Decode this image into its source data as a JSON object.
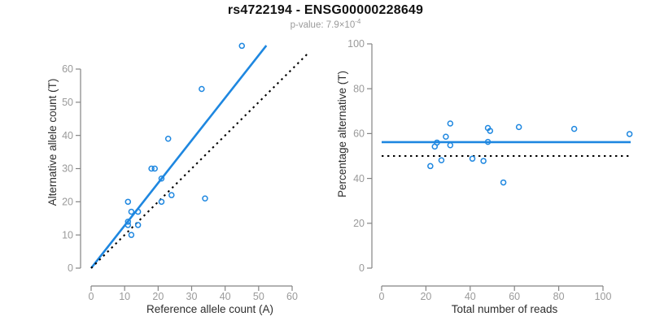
{
  "header": {
    "title": "rs4722194 - ENSG00000228649",
    "subtitle_prefix": "p-value: 7.9×10",
    "subtitle_exponent": "-4"
  },
  "colors": {
    "accent_blue": "#1e87e0",
    "line_black": "#000000",
    "axis_gray": "#848484",
    "tick_label_gray": "#9a9a9a",
    "axis_title_dark": "#2e2e2e"
  },
  "chart_data": [
    {
      "type": "scatter",
      "xlabel": "Reference allele count (A)",
      "ylabel": "Alternative allele count (T)",
      "xlim": [
        0,
        60
      ],
      "ylim": [
        0,
        60
      ],
      "x_ticks": [
        0,
        10,
        20,
        30,
        40,
        50,
        60
      ],
      "y_ticks": [
        0,
        10,
        20,
        30,
        40,
        50,
        60
      ],
      "grid": false,
      "legend": "none",
      "points": [
        [
          11,
          20
        ],
        [
          12,
          17
        ],
        [
          14,
          17
        ],
        [
          11,
          14
        ],
        [
          11,
          13
        ],
        [
          14,
          13
        ],
        [
          12,
          10
        ],
        [
          18,
          30
        ],
        [
          19,
          30
        ],
        [
          21,
          27
        ],
        [
          21,
          20
        ],
        [
          24,
          22
        ],
        [
          23,
          39
        ],
        [
          34,
          21
        ],
        [
          33,
          54
        ],
        [
          45,
          67
        ]
      ],
      "lines": [
        {
          "name": "fit-line",
          "style": "solid",
          "color_key": "accent_blue",
          "x1": 0,
          "y1": 0,
          "x2": 52.3,
          "y2": 67.1
        },
        {
          "name": "identity-line",
          "style": "dotted",
          "color_key": "line_black",
          "x1": 0,
          "y1": 0,
          "x2": 65,
          "y2": 65
        }
      ]
    },
    {
      "type": "scatter",
      "xlabel": "Total number of reads",
      "ylabel": "Percentage alternative (T)",
      "xlim": [
        0,
        100
      ],
      "ylim": [
        0,
        100
      ],
      "x_ticks": [
        0,
        20,
        40,
        60,
        80,
        100
      ],
      "y_ticks": [
        0,
        20,
        40,
        60,
        80,
        100
      ],
      "grid": false,
      "legend": "none",
      "points": [
        [
          31,
          64.5
        ],
        [
          29,
          58.6
        ],
        [
          31,
          54.8
        ],
        [
          25,
          56.0
        ],
        [
          24,
          54.2
        ],
        [
          27,
          48.1
        ],
        [
          22,
          45.5
        ],
        [
          48,
          62.5
        ],
        [
          49,
          61.2
        ],
        [
          48,
          56.3
        ],
        [
          41,
          48.8
        ],
        [
          46,
          47.8
        ],
        [
          62,
          62.9
        ],
        [
          55,
          38.2
        ],
        [
          87,
          62.1
        ],
        [
          112,
          59.8
        ]
      ],
      "lines": [
        {
          "name": "mean-line",
          "style": "solid",
          "color_key": "accent_blue",
          "x1": 0,
          "y1": 56.2,
          "x2": 112.5,
          "y2": 56.2
        },
        {
          "name": "reference-line",
          "style": "dotted",
          "color_key": "line_black",
          "x1": 0,
          "y1": 50,
          "x2": 112.5,
          "y2": 50
        }
      ]
    }
  ]
}
